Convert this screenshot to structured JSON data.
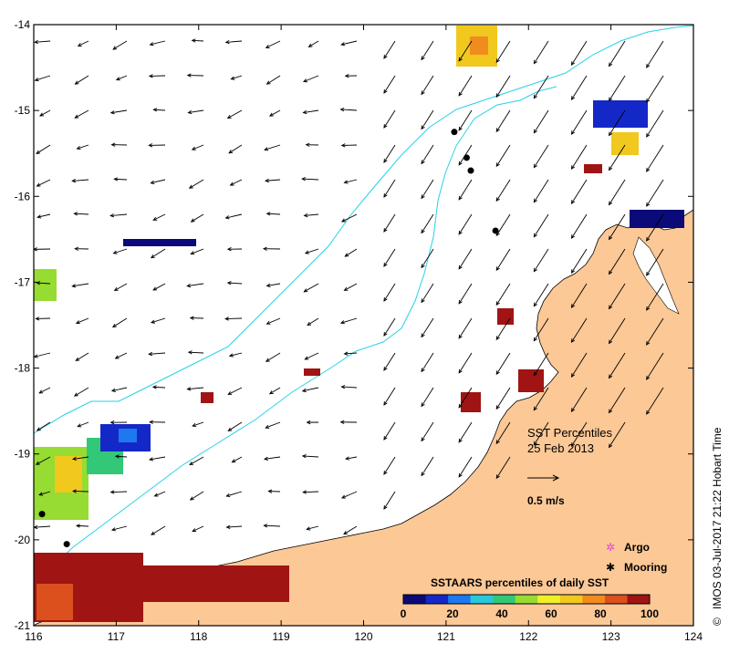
{
  "map": {
    "lon_ticks": [
      "116",
      "117",
      "118",
      "119",
      "120",
      "121",
      "122",
      "123",
      "124"
    ],
    "lat_ticks": [
      "-14",
      "-15",
      "-16",
      "-17",
      "-18",
      "-19",
      "-20",
      "-21"
    ],
    "lon_range": [
      116,
      124
    ],
    "lat_range": [
      -21,
      -14
    ],
    "title": "SST Percentiles",
    "date": "25 Feb 2013",
    "velocity_scale_label": "0.5 m/s",
    "credit": "IMOS 03-Jul-2017 21:22 Hobart Time",
    "credit_symbol": "©",
    "legend": [
      {
        "label": "Argo",
        "color": "#e040e0"
      },
      {
        "label": "Mooring",
        "color": "#000000"
      }
    ],
    "colorbar": {
      "title": "SSTAARS percentiles of daily SST",
      "ticks": [
        "0",
        "20",
        "40",
        "60",
        "80",
        "100"
      ],
      "colors": [
        "#0a0a78",
        "#1428c8",
        "#1e78f0",
        "#28c8dc",
        "#32c878",
        "#96dc32",
        "#f0f028",
        "#f0c81e",
        "#f08c1e",
        "#dc501e",
        "#a01414"
      ]
    },
    "colors": {
      "land": "#fcc896",
      "ocean": "#ffffff",
      "contour": "#28d2e6",
      "frame": "#000000"
    },
    "moorings": [
      {
        "lon": 121.1,
        "lat": -15.25
      },
      {
        "lon": 121.25,
        "lat": -15.55
      },
      {
        "lon": 121.3,
        "lat": -15.7
      },
      {
        "lon": 121.6,
        "lat": -16.4
      },
      {
        "lon": 116.1,
        "lat": -19.7
      },
      {
        "lon": 116.4,
        "lat": -20.05
      }
    ]
  }
}
